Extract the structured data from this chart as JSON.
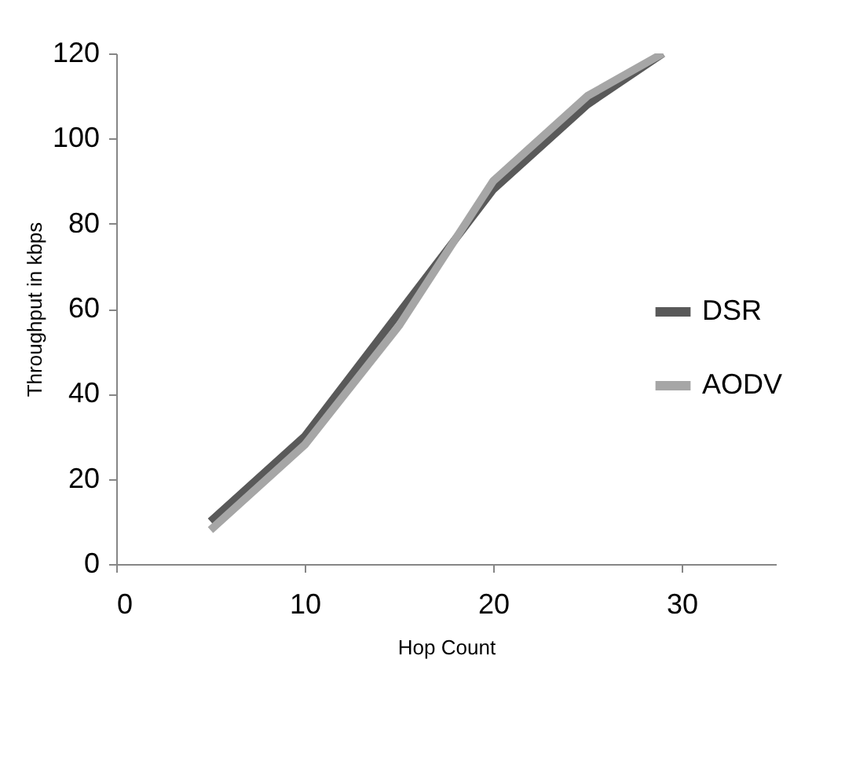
{
  "chart_data": {
    "type": "line",
    "xlabel": "Hop Count",
    "ylabel": "Throughput in kbps",
    "xlim": [
      0,
      35
    ],
    "xticks": [
      0,
      10,
      20,
      30
    ],
    "ylim": [
      0,
      120
    ],
    "yticks": [
      0,
      20,
      40,
      60,
      80,
      100,
      120
    ],
    "grid": false,
    "legend": "right",
    "marker": "none",
    "line_style": "solid",
    "series": [
      {
        "name": "DSR",
        "color": "#595959",
        "x": [
          5,
          10,
          15,
          20,
          25,
          29
        ],
        "values": [
          10,
          30,
          59,
          88,
          108,
          120
        ]
      },
      {
        "name": "AODV",
        "color": "#a6a6a6",
        "x": [
          5,
          10,
          15,
          20,
          25,
          29
        ],
        "values": [
          8,
          28,
          56,
          90,
          110,
          120
        ]
      }
    ]
  }
}
